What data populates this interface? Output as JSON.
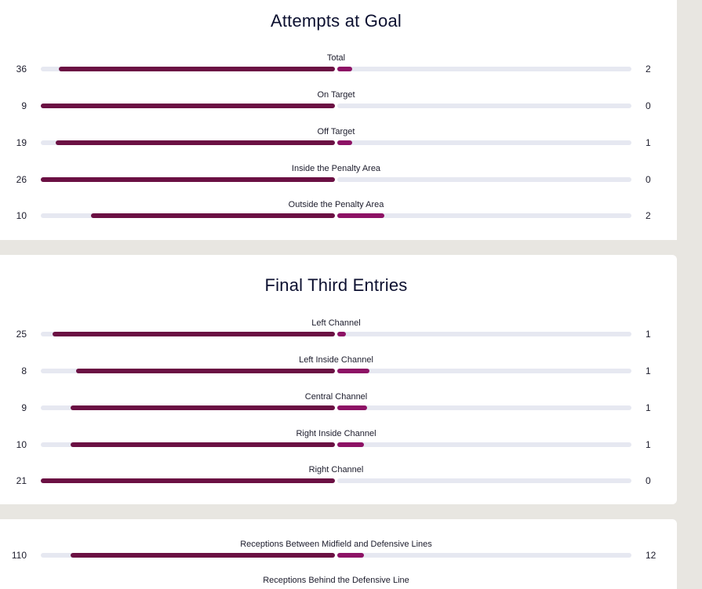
{
  "colors": {
    "home_bar": "#6b1043",
    "away_bar": "#8d1265",
    "track": "#e6e8f1",
    "panel_bg": "#ffffff",
    "page_bg": "#e8e6e1"
  },
  "sections": [
    {
      "title": "Attempts at Goal",
      "stats": [
        {
          "label": "Total",
          "home": 36,
          "away": 2,
          "home_fill": 0.94,
          "away_fill": 0.05
        },
        {
          "label": "On Target",
          "home": 9,
          "away": 0,
          "home_fill": 1.0,
          "away_fill": 0.0
        },
        {
          "label": "Off Target",
          "home": 19,
          "away": 1,
          "home_fill": 0.95,
          "away_fill": 0.05
        },
        {
          "label": "Inside the Penalty Area",
          "home": 26,
          "away": 0,
          "home_fill": 1.0,
          "away_fill": 0.0
        },
        {
          "label": "Outside the Penalty Area",
          "home": 10,
          "away": 2,
          "home_fill": 0.83,
          "away_fill": 0.16
        }
      ]
    },
    {
      "title": "Final Third Entries",
      "stats": [
        {
          "label": "Left Channel",
          "home": 25,
          "away": 1,
          "home_fill": 0.96,
          "away_fill": 0.03
        },
        {
          "label": "Left Inside Channel",
          "home": 8,
          "away": 1,
          "home_fill": 0.88,
          "away_fill": 0.11
        },
        {
          "label": "Central Channel",
          "home": 9,
          "away": 1,
          "home_fill": 0.9,
          "away_fill": 0.1
        },
        {
          "label": "Right Inside Channel",
          "home": 10,
          "away": 1,
          "home_fill": 0.9,
          "away_fill": 0.09
        },
        {
          "label": "Right Channel",
          "home": 21,
          "away": 0,
          "home_fill": 1.0,
          "away_fill": 0.0
        }
      ]
    },
    {
      "title": "",
      "stats": [
        {
          "label": "Receptions Between Midfield and Defensive Lines",
          "home": 110,
          "away": 12,
          "home_fill": 0.9,
          "away_fill": 0.09
        },
        {
          "label": "Receptions Behind the Defensive Line"
        }
      ]
    }
  ]
}
